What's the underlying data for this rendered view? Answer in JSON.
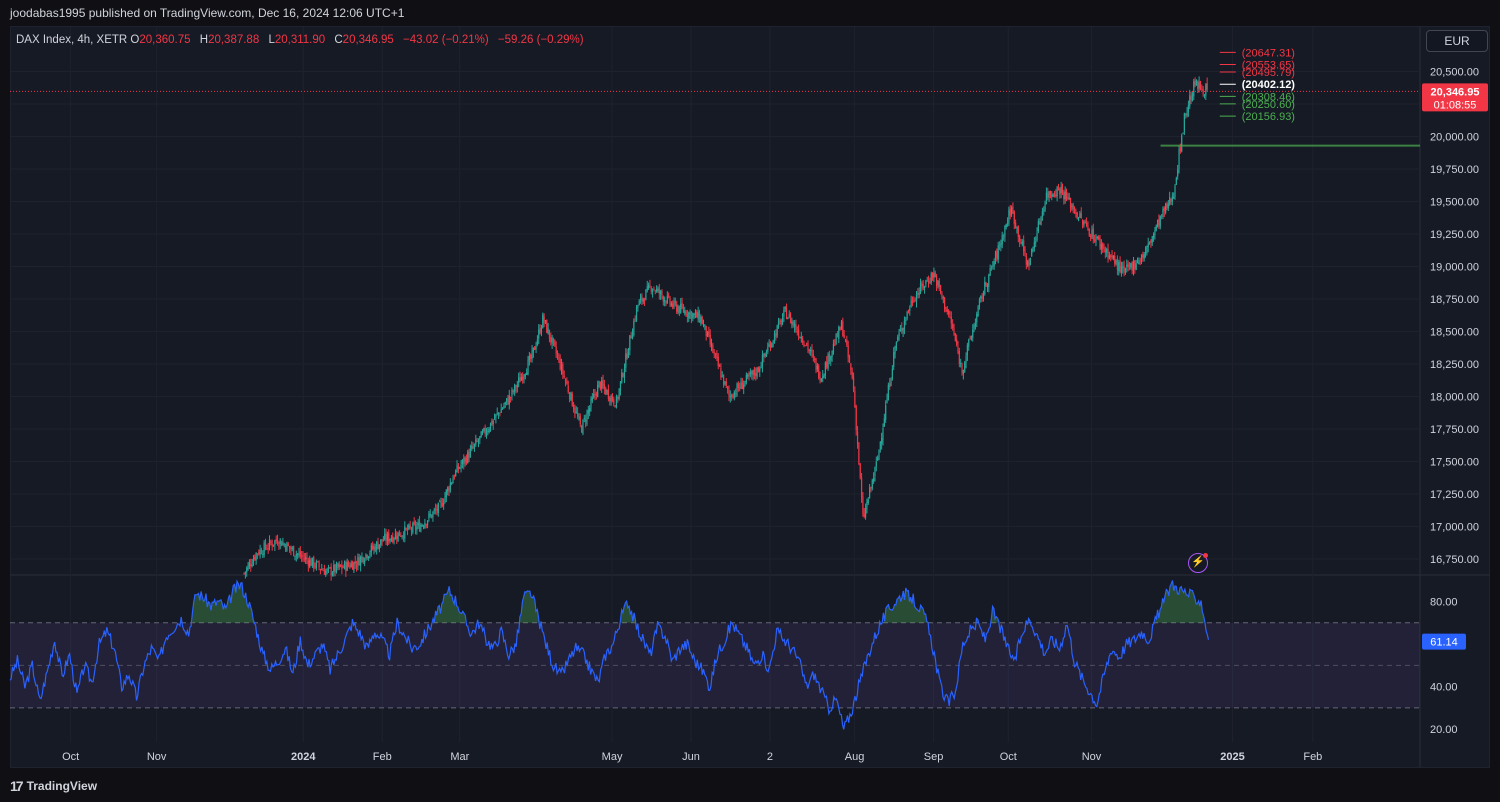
{
  "header": {
    "published_line": "joodabas1995 published on TradingView.com, Dec 16, 2024 12:06 UTC+1"
  },
  "legend": {
    "symbol": "DAX Index, 4h, XETR",
    "o_label": "O",
    "o_value": "20,360.75",
    "h_label": "H",
    "h_value": "20,387.88",
    "l_label": "L",
    "l_value": "20,311.90",
    "c_label": "C",
    "c_value": "20,346.95",
    "change": "−43.02 (−0.21%)",
    "change2": "−59.26 (−0.29%)"
  },
  "currency_button": "EUR",
  "footer": {
    "logo": "17",
    "brand": "TradingView"
  },
  "colors": {
    "up": "#26a69a",
    "down": "#f23645",
    "rsi": "#2962ff",
    "rsi_band": "#7e57c2",
    "level_red": "#f23645",
    "level_green": "#4caf50",
    "support": "#4caf50"
  },
  "chart_data": [
    {
      "type": "candlestick",
      "symbol": "DAX Index",
      "interval": "4h",
      "exchange": "XETR",
      "last_price": "20,346.95",
      "countdown": "01:08:55",
      "ylim": [
        16650,
        20650
      ],
      "y_ticks": [
        {
          "value": 20500,
          "label": "20,500.00"
        },
        {
          "value": 20250,
          "label": ""
        },
        {
          "value": 20000,
          "label": "20,000.00"
        },
        {
          "value": 19750,
          "label": "19,750.00"
        },
        {
          "value": 19500,
          "label": "19,500.00"
        },
        {
          "value": 19250,
          "label": "19,250.00"
        },
        {
          "value": 19000,
          "label": "19,000.00"
        },
        {
          "value": 18750,
          "label": "18,750.00"
        },
        {
          "value": 18500,
          "label": "18,500.00"
        },
        {
          "value": 18250,
          "label": "18,250.00"
        },
        {
          "value": 18000,
          "label": "18,000.00"
        },
        {
          "value": 17750,
          "label": "17,750.00"
        },
        {
          "value": 17500,
          "label": "17,500.00"
        },
        {
          "value": 17250,
          "label": "17,250.00"
        },
        {
          "value": 17000,
          "label": "17,000.00"
        },
        {
          "value": 16750,
          "label": "16,750.00"
        }
      ],
      "x_ticks": [
        {
          "t": 0.043,
          "label": "Oct",
          "bold": false
        },
        {
          "t": 0.104,
          "label": "Nov",
          "bold": false
        },
        {
          "t": 0.208,
          "label": "2024",
          "bold": true
        },
        {
          "t": 0.264,
          "label": "Feb",
          "bold": false
        },
        {
          "t": 0.319,
          "label": "Mar",
          "bold": false
        },
        {
          "t": 0.427,
          "label": "May",
          "bold": false
        },
        {
          "t": 0.483,
          "label": "Jun",
          "bold": false
        },
        {
          "t": 0.539,
          "label": "2",
          "bold": false
        },
        {
          "t": 0.599,
          "label": "Aug",
          "bold": false
        },
        {
          "t": 0.655,
          "label": "Sep",
          "bold": false
        },
        {
          "t": 0.708,
          "label": "Oct",
          "bold": false
        },
        {
          "t": 0.767,
          "label": "Nov",
          "bold": false
        },
        {
          "t": 0.867,
          "label": "2025",
          "bold": true
        },
        {
          "t": 0.924,
          "label": "Feb",
          "bold": false
        }
      ],
      "price_path": [
        [
          0.166,
          16640
        ],
        [
          0.175,
          16800
        ],
        [
          0.19,
          16900
        ],
        [
          0.205,
          16780
        ],
        [
          0.225,
          16650
        ],
        [
          0.245,
          16720
        ],
        [
          0.265,
          16900
        ],
        [
          0.29,
          17000
        ],
        [
          0.305,
          17150
        ],
        [
          0.315,
          17400
        ],
        [
          0.335,
          17700
        ],
        [
          0.355,
          18000
        ],
        [
          0.37,
          18300
        ],
        [
          0.378,
          18600
        ],
        [
          0.39,
          18250
        ],
        [
          0.405,
          17750
        ],
        [
          0.418,
          18100
        ],
        [
          0.43,
          17950
        ],
        [
          0.445,
          18700
        ],
        [
          0.455,
          18850
        ],
        [
          0.47,
          18700
        ],
        [
          0.49,
          18600
        ],
        [
          0.51,
          18000
        ],
        [
          0.53,
          18200
        ],
        [
          0.55,
          18650
        ],
        [
          0.565,
          18400
        ],
        [
          0.575,
          18150
        ],
        [
          0.59,
          18550
        ],
        [
          0.598,
          18100
        ],
        [
          0.605,
          17050
        ],
        [
          0.615,
          17500
        ],
        [
          0.628,
          18400
        ],
        [
          0.64,
          18750
        ],
        [
          0.655,
          18950
        ],
        [
          0.668,
          18550
        ],
        [
          0.675,
          18200
        ],
        [
          0.69,
          18800
        ],
        [
          0.7,
          19100
        ],
        [
          0.71,
          19450
        ],
        [
          0.722,
          19000
        ],
        [
          0.735,
          19550
        ],
        [
          0.745,
          19600
        ],
        [
          0.76,
          19350
        ],
        [
          0.775,
          19150
        ],
        [
          0.79,
          18950
        ],
        [
          0.805,
          19100
        ],
        [
          0.815,
          19350
        ],
        [
          0.825,
          19550
        ],
        [
          0.833,
          20150
        ],
        [
          0.84,
          20400
        ],
        [
          0.85,
          20350
        ]
      ],
      "support_line": {
        "value": 19930,
        "x_start": 0.816
      },
      "price_levels": [
        {
          "label": "(20647.31)",
          "value": 20647.31,
          "color": "red"
        },
        {
          "label": "(20553.65)",
          "value": 20553.65,
          "color": "red"
        },
        {
          "label": "(20495.79)",
          "value": 20495.79,
          "color": "red"
        },
        {
          "label": "(20402.12)",
          "value": 20402.12,
          "color": "white"
        },
        {
          "label": "(20308.46)",
          "value": 20308.46,
          "color": "green"
        },
        {
          "label": "(20250.60)",
          "value": 20250.6,
          "color": "green"
        },
        {
          "label": "(20156.93)",
          "value": 20156.93,
          "color": "green"
        }
      ]
    },
    {
      "type": "line",
      "name": "RSI",
      "current_value": "61.14",
      "ylim": [
        14,
        91
      ],
      "overbought": 70,
      "middle": 50,
      "oversold": 30,
      "y_ticks": [
        {
          "value": 80,
          "label": "80.00"
        },
        {
          "value": 40,
          "label": "40.00"
        },
        {
          "value": 20,
          "label": "20.00"
        }
      ],
      "values": [
        44,
        52,
        40,
        50,
        33,
        47,
        62,
        45,
        55,
        36,
        50,
        42,
        60,
        66,
        58,
        40,
        46,
        35,
        50,
        58,
        52,
        64,
        68,
        72,
        65,
        84,
        82,
        78,
        80,
        76,
        85,
        88,
        80,
        68,
        55,
        48,
        52,
        58,
        46,
        62,
        50,
        55,
        60,
        48,
        55,
        62,
        70,
        65,
        58,
        66,
        62,
        55,
        70,
        64,
        58,
        60,
        66,
        72,
        78,
        85,
        80,
        72,
        65,
        70,
        62,
        58,
        66,
        55,
        60,
        82,
        84,
        72,
        60,
        50,
        45,
        52,
        58,
        55,
        48,
        42,
        55,
        60,
        72,
        80,
        70,
        62,
        55,
        68,
        64,
        52,
        58,
        60,
        52,
        48,
        40,
        55,
        62,
        70,
        64,
        58,
        50,
        55,
        48,
        66,
        62,
        58,
        52,
        40,
        46,
        38,
        30,
        34,
        20,
        28,
        40,
        52,
        62,
        70,
        76,
        80,
        84,
        82,
        78,
        72,
        58,
        40,
        32,
        38,
        60,
        66,
        70,
        62,
        75,
        68,
        58,
        52,
        66,
        72,
        64,
        56,
        62,
        58,
        70,
        52,
        44,
        38,
        32,
        46,
        58,
        54,
        60,
        62,
        66,
        62,
        72,
        80,
        88,
        86,
        84,
        82,
        80,
        62
      ],
      "v_start": 0.0,
      "v_end": 0.85
    }
  ]
}
